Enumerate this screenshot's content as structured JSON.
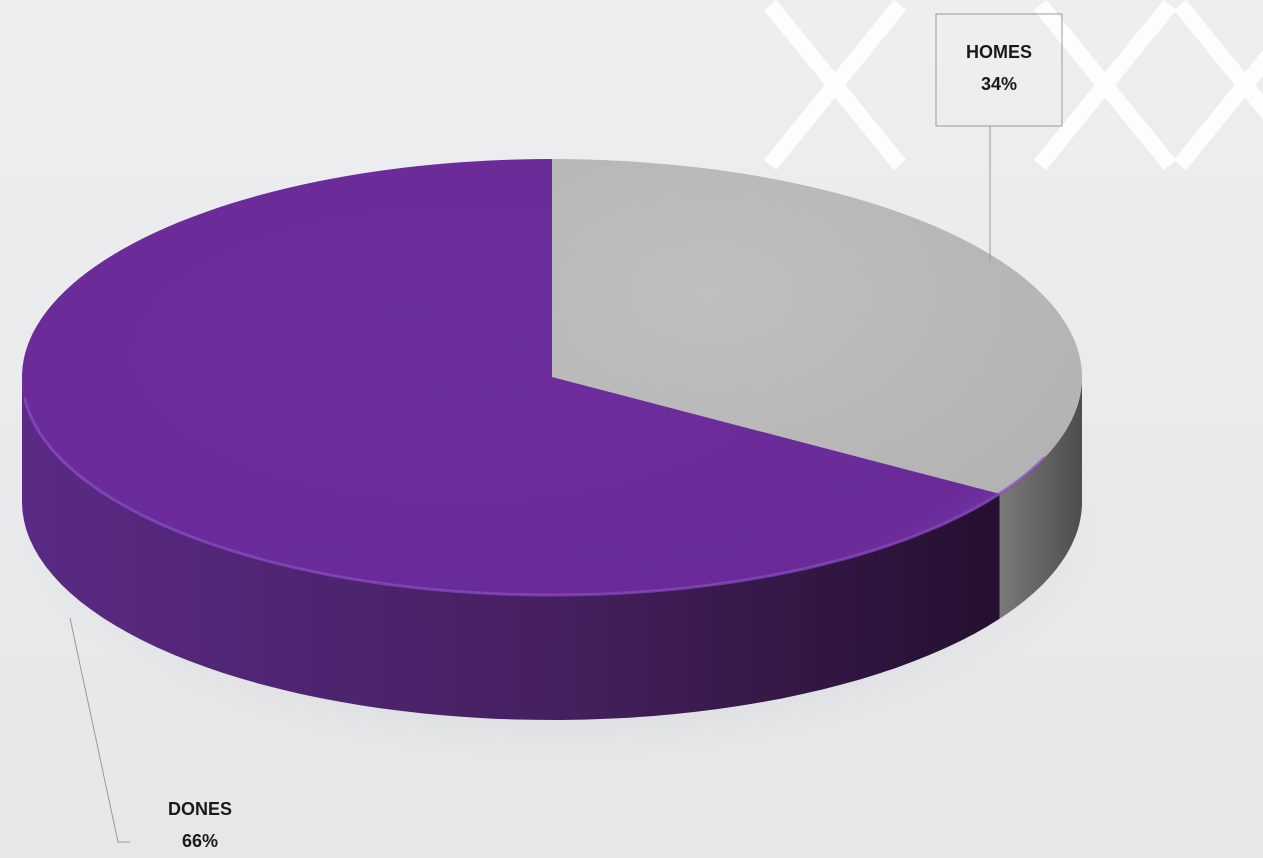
{
  "chart_data": {
    "type": "pie",
    "style": "3d",
    "title": "",
    "slices": [
      {
        "label": "HOMES",
        "value": 34,
        "display": "34%",
        "color": "#bdbdbd"
      },
      {
        "label": "DONES",
        "value": 66,
        "display": "66%",
        "color": "#6b2c9b"
      }
    ],
    "legend": "none",
    "data_labels": "callouts"
  },
  "watermark": {
    "glyph": "X",
    "color": "#ffffff"
  }
}
